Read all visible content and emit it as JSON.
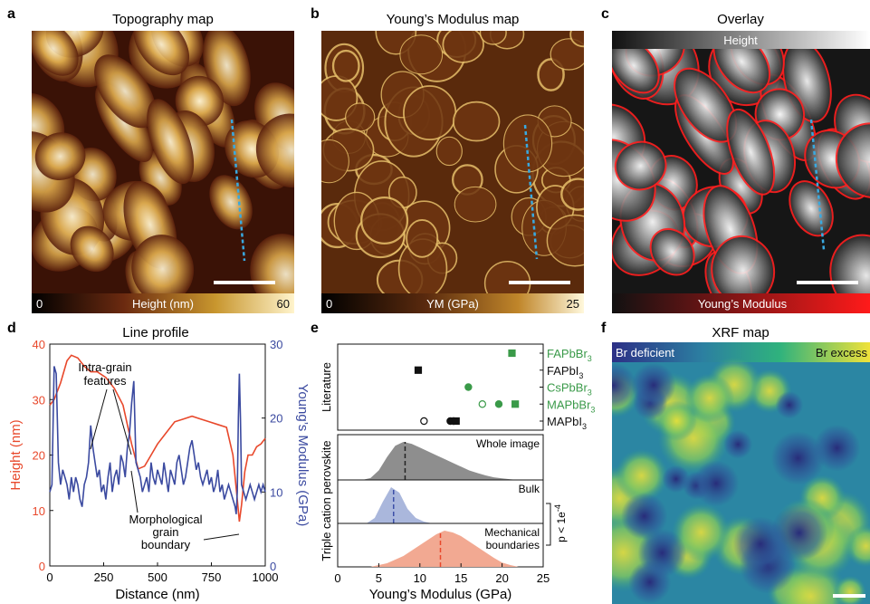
{
  "panels": {
    "a": {
      "letter": "a",
      "title": "Topography map",
      "cbar_min": "0",
      "cbar_label": "Height (nm)",
      "cbar_max": "60"
    },
    "b": {
      "letter": "b",
      "title": "Young’s Modulus map",
      "cbar_min": "0",
      "cbar_label": "YM (GPa)",
      "cbar_max": "25"
    },
    "c": {
      "letter": "c",
      "title": "Overlay",
      "top_label": "Height",
      "bottom_label": "Young’s Modulus"
    },
    "d": {
      "letter": "d",
      "title": "Line profile"
    },
    "e": {
      "letter": "e"
    },
    "f": {
      "letter": "f",
      "title": "XRF map",
      "left_label": "Br deficient",
      "right_label": "Br excess"
    }
  },
  "chart_data": [
    {
      "panel": "d",
      "type": "line",
      "title": "Line profile",
      "xlabel": "Distance (nm)",
      "ylabel": "Height (nm)",
      "y2label": "Young’s Modulus (GPa)",
      "xlim": [
        0,
        1000
      ],
      "ylim": [
        0,
        40
      ],
      "y2lim": [
        0,
        30
      ],
      "xticks": [
        "0",
        "250",
        "500",
        "750",
        "1000"
      ],
      "yticks": [
        "0",
        "10",
        "20",
        "30",
        "40"
      ],
      "y2ticks": [
        "0",
        "10",
        "20",
        "30"
      ],
      "colors": {
        "height": "#e8482b",
        "modulus": "#3b4aa0"
      },
      "series": [
        {
          "name": "Height",
          "axis": "left",
          "x": [
            0,
            20,
            50,
            80,
            100,
            130,
            160,
            190,
            220,
            260,
            300,
            340,
            380,
            410,
            440,
            470,
            500,
            540,
            580,
            620,
            660,
            700,
            740,
            780,
            820,
            850,
            870,
            880,
            890,
            905,
            920,
            940,
            960,
            980,
            1000
          ],
          "y": [
            29,
            30,
            33,
            37,
            38,
            37.5,
            36,
            35,
            35,
            34,
            32,
            29,
            22,
            17.5,
            18,
            20,
            22,
            24,
            26,
            26.5,
            27,
            26.5,
            26,
            25.5,
            25,
            20,
            12,
            8,
            11,
            17,
            20,
            20,
            21.5,
            22,
            23
          ]
        },
        {
          "name": "Young’s Modulus",
          "axis": "right",
          "x": [
            0,
            10,
            20,
            30,
            40,
            50,
            60,
            70,
            80,
            90,
            100,
            110,
            120,
            130,
            140,
            150,
            160,
            170,
            180,
            190,
            200,
            210,
            220,
            230,
            240,
            250,
            260,
            270,
            280,
            290,
            300,
            310,
            320,
            330,
            340,
            350,
            360,
            370,
            380,
            390,
            400,
            410,
            420,
            430,
            440,
            450,
            460,
            470,
            480,
            490,
            500,
            510,
            520,
            530,
            540,
            550,
            560,
            570,
            580,
            590,
            600,
            610,
            620,
            630,
            640,
            650,
            660,
            670,
            680,
            690,
            700,
            710,
            720,
            730,
            740,
            750,
            760,
            770,
            780,
            790,
            800,
            810,
            820,
            830,
            840,
            850,
            860,
            865,
            870,
            875,
            880,
            885,
            890,
            900,
            910,
            920,
            930,
            940,
            950,
            960,
            970,
            980,
            990,
            1000
          ],
          "y": [
            10,
            11,
            27,
            26,
            14,
            11,
            13,
            12,
            11,
            9,
            12,
            10,
            12,
            11,
            9,
            8,
            11,
            12,
            14,
            19,
            16,
            14,
            12,
            13,
            10,
            11,
            9,
            12,
            14,
            10,
            12,
            13,
            11,
            15,
            14,
            12,
            16,
            18,
            22,
            25,
            14,
            13,
            12,
            10,
            11,
            12,
            10,
            14,
            12,
            11,
            13,
            12,
            11,
            14,
            12,
            10,
            13,
            12,
            11,
            14,
            15,
            13,
            11,
            12,
            14,
            16,
            17,
            15,
            13,
            14,
            12,
            11,
            12,
            13,
            11,
            12,
            10,
            11,
            13,
            10,
            11,
            9,
            10,
            11,
            10,
            9,
            8,
            7,
            10,
            20,
            26,
            20,
            11,
            10,
            9,
            10,
            11,
            10,
            9,
            10,
            11,
            10,
            11,
            10
          ]
        }
      ],
      "annotations": [
        "Intra-grain features",
        "Morphological grain boundary"
      ]
    },
    {
      "panel": "e",
      "type": "scatter",
      "xlabel": "Young’s Modulus (GPa)",
      "xlim": [
        0,
        25
      ],
      "xticks": [
        "0",
        "5",
        "10",
        "15",
        "20",
        "25"
      ],
      "literature": {
        "ylabel": "Literature",
        "categories": [
          "FAPbBr3",
          "FAPbI3",
          "CsPbBr3",
          "MAPbBr3",
          "MAPbI3"
        ],
        "category_colors": [
          "#3a9a49",
          "#111111",
          "#3a9a49",
          "#3a9a49",
          "#111111"
        ],
        "points": [
          {
            "category": "FAPbBr3",
            "x": 21.2,
            "marker": "square",
            "filled": true,
            "color": "#3a9a49"
          },
          {
            "category": "FAPbI3",
            "x": 9.8,
            "marker": "square",
            "filled": true,
            "color": "#111111"
          },
          {
            "category": "CsPbBr3",
            "x": 15.9,
            "marker": "circle",
            "filled": true,
            "color": "#3a9a49"
          },
          {
            "category": "MAPbBr3",
            "x": 17.6,
            "marker": "circle",
            "filled": false,
            "color": "#3a9a49"
          },
          {
            "category": "MAPbBr3",
            "x": 19.6,
            "marker": "circle",
            "filled": true,
            "color": "#3a9a49"
          },
          {
            "category": "MAPbBr3",
            "x": 21.6,
            "marker": "square",
            "filled": true,
            "color": "#3a9a49"
          },
          {
            "category": "MAPbI3",
            "x": 10.5,
            "marker": "circle",
            "filled": false,
            "color": "#111111"
          },
          {
            "category": "MAPbI3",
            "x": 13.7,
            "marker": "circle",
            "filled": true,
            "color": "#111111"
          },
          {
            "category": "MAPbI3",
            "x": 14.1,
            "marker": "circle",
            "filled": true,
            "color": "#111111"
          },
          {
            "category": "MAPbI3",
            "x": 14.4,
            "marker": "square",
            "filled": true,
            "color": "#111111"
          }
        ]
      },
      "distributions": {
        "ylabel": "Triple cation perovskite",
        "significance": "p < 1e",
        "significance_exp": "-4",
        "series": [
          {
            "name": "Whole image",
            "mean": 8.2,
            "color": "#8e8e8e",
            "x": [
              3,
              4,
              5,
              6,
              7,
              8,
              9,
              10,
              11,
              12,
              13,
              14,
              15,
              16,
              17,
              18,
              19,
              20,
              21,
              22
            ],
            "density": [
              0,
              0.05,
              0.25,
              0.6,
              0.9,
              1.0,
              0.95,
              0.85,
              0.75,
              0.65,
              0.55,
              0.45,
              0.35,
              0.25,
              0.18,
              0.12,
              0.07,
              0.04,
              0.02,
              0
            ]
          },
          {
            "name": "Bulk",
            "mean": 6.8,
            "color": "#aab7dc",
            "x": [
              3.5,
              4.5,
              5.5,
              6.5,
              7.5,
              8.5,
              9.5,
              10.5,
              11.5
            ],
            "density": [
              0,
              0.15,
              0.6,
              1.0,
              0.85,
              0.4,
              0.15,
              0.05,
              0
            ]
          },
          {
            "name": "Mechanical boundaries",
            "mean": 12.5,
            "color": "#f2a992",
            "x": [
              4,
              6,
              8,
              9,
              10,
              11,
              12,
              13,
              14,
              15,
              16,
              17,
              18,
              19,
              20,
              21,
              22
            ],
            "density": [
              0,
              0.1,
              0.3,
              0.45,
              0.6,
              0.75,
              0.9,
              1.0,
              0.95,
              0.85,
              0.7,
              0.55,
              0.4,
              0.25,
              0.12,
              0.05,
              0
            ]
          }
        ]
      }
    }
  ]
}
